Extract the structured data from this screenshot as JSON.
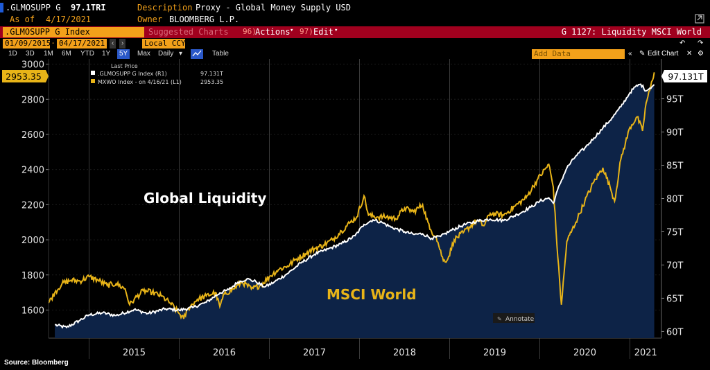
{
  "header": {
    "ticker": ".GLMOSUPP G",
    "last_value": "97.1TRI",
    "as_of_label": "As of",
    "as_of_date": "4/17/2021",
    "description_label": "Description",
    "description": "Proxy - Global Money Supply USD",
    "owner_label": "Owner",
    "owner": "BLOOMBERG L.P."
  },
  "command_bar": {
    "security_field": ".GLMOSUPP G Index",
    "suggested_charts": "Suggested Charts",
    "actions_num": "96)",
    "actions_label": "Actions",
    "edit_num": "97)",
    "edit_label": "Edit",
    "chart_id": "G 1127: Liquidity MSCI World"
  },
  "toolbar": {
    "start_date": "01/09/2015",
    "end_date": "04/17/2021",
    "currency": "Local CCY",
    "periods": [
      "1D",
      "3D",
      "1M",
      "6M",
      "YTD",
      "1Y",
      "5Y",
      "Max"
    ],
    "selected_period": "5Y",
    "frequency": "Daily",
    "table_label": "Table",
    "add_data_placeholder": "Add Data",
    "edit_chart_label": "Edit Chart"
  },
  "legend": {
    "heading": "Last Price",
    "entries": [
      {
        "label": ".GLMOSUPP G Index  (R1)",
        "value": "97.131T",
        "color": "#ffffff"
      },
      {
        "label": "MXWO Index - on 4/16/21  (L1)",
        "value": "2953.35",
        "color": "#e8b418"
      }
    ]
  },
  "annotations": {
    "global_liquidity": "Global Liquidity",
    "msci_world": "MSCI World",
    "annotate_button": "Annotate"
  },
  "footer": {
    "source": "Source: Bloomberg"
  },
  "colors": {
    "msci": "#e8b418",
    "liquidity": "#ffffff",
    "area_fill": "#0d2347",
    "accent": "#f3a11a",
    "command_bar": "#a0001e"
  },
  "chart_data": {
    "type": "line",
    "x_ticks": [
      "2015",
      "2016",
      "2017",
      "2018",
      "2019",
      "2020",
      "2021"
    ],
    "left_axis": {
      "ticks": [
        1600,
        1800,
        2000,
        2200,
        2400,
        2600,
        2800,
        3000
      ],
      "ylim": [
        1440,
        3030
      ]
    },
    "right_axis": {
      "ticks": [
        "60T",
        "65T",
        "70T",
        "75T",
        "80T",
        "85T",
        "90T",
        "95T"
      ],
      "values": [
        60,
        65,
        70,
        75,
        80,
        85,
        90,
        95
      ],
      "ylim": [
        59,
        101
      ]
    },
    "last_labels": {
      "left": "2953.35",
      "right": "97.131T"
    },
    "xlim": [
      2014.55,
      2021.35
    ],
    "grid": true,
    "series": [
      {
        "name": ".GLMOSUPP G Index",
        "axis": "right",
        "points": [
          [
            2014.62,
            61.0
          ],
          [
            2014.75,
            60.6
          ],
          [
            2014.9,
            61.7
          ],
          [
            2015.0,
            62.5
          ],
          [
            2015.15,
            62.8
          ],
          [
            2015.3,
            62.4
          ],
          [
            2015.5,
            63.3
          ],
          [
            2015.65,
            62.7
          ],
          [
            2015.85,
            63.4
          ],
          [
            2016.0,
            63.2
          ],
          [
            2016.15,
            63.6
          ],
          [
            2016.3,
            64.4
          ],
          [
            2016.45,
            65.8
          ],
          [
            2016.55,
            66.3
          ],
          [
            2016.65,
            67.4
          ],
          [
            2016.75,
            67.9
          ],
          [
            2016.85,
            67.5
          ],
          [
            2016.95,
            66.7
          ],
          [
            2017.05,
            67.4
          ],
          [
            2017.2,
            68.7
          ],
          [
            2017.35,
            70.3
          ],
          [
            2017.5,
            71.6
          ],
          [
            2017.65,
            72.4
          ],
          [
            2017.8,
            73.2
          ],
          [
            2017.95,
            74.4
          ],
          [
            2018.05,
            76.1
          ],
          [
            2018.15,
            76.8
          ],
          [
            2018.25,
            76.4
          ],
          [
            2018.35,
            75.7
          ],
          [
            2018.5,
            75.0
          ],
          [
            2018.6,
            74.6
          ],
          [
            2018.7,
            74.7
          ],
          [
            2018.8,
            74.0
          ],
          [
            2018.9,
            74.3
          ],
          [
            2019.0,
            75.1
          ],
          [
            2019.15,
            76.0
          ],
          [
            2019.3,
            76.6
          ],
          [
            2019.45,
            76.9
          ],
          [
            2019.6,
            76.7
          ],
          [
            2019.75,
            77.6
          ],
          [
            2019.9,
            78.7
          ],
          [
            2020.0,
            79.6
          ],
          [
            2020.1,
            80.1
          ],
          [
            2020.15,
            79.3
          ],
          [
            2020.22,
            82.1
          ],
          [
            2020.3,
            84.6
          ],
          [
            2020.4,
            86.4
          ],
          [
            2020.5,
            87.6
          ],
          [
            2020.6,
            89.1
          ],
          [
            2020.7,
            90.6
          ],
          [
            2020.8,
            92.1
          ],
          [
            2020.9,
            93.8
          ],
          [
            2021.0,
            95.9
          ],
          [
            2021.06,
            96.8
          ],
          [
            2021.12,
            97.2
          ],
          [
            2021.18,
            96.2
          ],
          [
            2021.22,
            96.6
          ],
          [
            2021.27,
            97.13
          ]
        ]
      },
      {
        "name": "MXWO Index",
        "axis": "left",
        "points": [
          [
            2014.55,
            1640
          ],
          [
            2014.62,
            1700
          ],
          [
            2014.7,
            1750
          ],
          [
            2014.8,
            1770
          ],
          [
            2014.9,
            1765
          ],
          [
            2015.0,
            1790
          ],
          [
            2015.1,
            1770
          ],
          [
            2015.2,
            1740
          ],
          [
            2015.3,
            1750
          ],
          [
            2015.4,
            1720
          ],
          [
            2015.45,
            1630
          ],
          [
            2015.5,
            1660
          ],
          [
            2015.6,
            1710
          ],
          [
            2015.7,
            1700
          ],
          [
            2015.8,
            1680
          ],
          [
            2015.9,
            1640
          ],
          [
            2016.0,
            1580
          ],
          [
            2016.05,
            1550
          ],
          [
            2016.1,
            1610
          ],
          [
            2016.2,
            1660
          ],
          [
            2016.3,
            1680
          ],
          [
            2016.4,
            1700
          ],
          [
            2016.45,
            1620
          ],
          [
            2016.5,
            1690
          ],
          [
            2016.6,
            1720
          ],
          [
            2016.7,
            1760
          ],
          [
            2016.8,
            1720
          ],
          [
            2016.9,
            1740
          ],
          [
            2017.0,
            1790
          ],
          [
            2017.1,
            1830
          ],
          [
            2017.2,
            1850
          ],
          [
            2017.3,
            1890
          ],
          [
            2017.4,
            1920
          ],
          [
            2017.5,
            1950
          ],
          [
            2017.6,
            1970
          ],
          [
            2017.7,
            2000
          ],
          [
            2017.8,
            2050
          ],
          [
            2017.9,
            2100
          ],
          [
            2017.97,
            2130
          ],
          [
            2018.05,
            2250
          ],
          [
            2018.1,
            2140
          ],
          [
            2018.2,
            2130
          ],
          [
            2018.3,
            2130
          ],
          [
            2018.4,
            2120
          ],
          [
            2018.5,
            2180
          ],
          [
            2018.6,
            2160
          ],
          [
            2018.7,
            2200
          ],
          [
            2018.78,
            2060
          ],
          [
            2018.85,
            2020
          ],
          [
            2018.93,
            1880
          ],
          [
            2018.98,
            1890
          ],
          [
            2019.05,
            2000
          ],
          [
            2019.15,
            2040
          ],
          [
            2019.3,
            2110
          ],
          [
            2019.38,
            2080
          ],
          [
            2019.45,
            2150
          ],
          [
            2019.6,
            2140
          ],
          [
            2019.72,
            2190
          ],
          [
            2019.85,
            2240
          ],
          [
            2019.97,
            2340
          ],
          [
            2020.1,
            2430
          ],
          [
            2020.15,
            2300
          ],
          [
            2020.2,
            1900
          ],
          [
            2020.24,
            1630
          ],
          [
            2020.3,
            1990
          ],
          [
            2020.4,
            2100
          ],
          [
            2020.5,
            2220
          ],
          [
            2020.6,
            2330
          ],
          [
            2020.7,
            2410
          ],
          [
            2020.78,
            2300
          ],
          [
            2020.83,
            2220
          ],
          [
            2020.9,
            2460
          ],
          [
            2021.0,
            2640
          ],
          [
            2021.08,
            2700
          ],
          [
            2021.14,
            2620
          ],
          [
            2021.18,
            2780
          ],
          [
            2021.22,
            2850
          ],
          [
            2021.27,
            2953.35
          ]
        ]
      }
    ]
  }
}
